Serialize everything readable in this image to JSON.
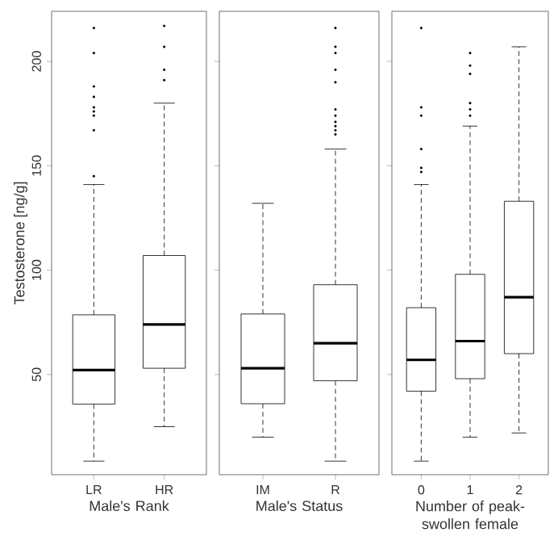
{
  "chart_data": [
    {
      "type": "box",
      "ylabel": "Testosterone [ng/g]",
      "xlabel": "Male's Rank",
      "categories": [
        "LR",
        "HR"
      ],
      "ylim": [
        2,
        224
      ],
      "yticks": [
        50,
        100,
        150,
        200
      ],
      "boxes": [
        {
          "low": 8.5,
          "q1": 35.8,
          "median": 52.1,
          "q3": 78.6,
          "high": 141,
          "outliers": [
            145,
            167,
            174,
            176,
            178,
            183,
            188,
            204,
            216
          ]
        },
        {
          "low": 25,
          "q1": 53,
          "median": 74,
          "q3": 107,
          "high": 180,
          "outliers": [
            191,
            196,
            207,
            217
          ]
        }
      ]
    },
    {
      "type": "box",
      "xlabel": "Male's Status",
      "categories": [
        "IM",
        "R"
      ],
      "ylim": [
        2,
        224
      ],
      "yticks": [
        50,
        100,
        150,
        200
      ],
      "tick_labels": "x",
      "boxes": [
        {
          "low": 20,
          "q1": 36,
          "median": 53,
          "q3": 79,
          "high": 132
        },
        {
          "low": 8.5,
          "q1": 47,
          "median": 65,
          "q3": 93,
          "high": 158,
          "outliers": [
            165,
            167,
            169,
            171,
            174,
            177,
            190,
            196,
            204,
            207,
            216
          ]
        }
      ]
    },
    {
      "type": "box",
      "xlabel": "Number of peak-swollen female",
      "categories": [
        "0",
        "1",
        "2"
      ],
      "ylim": [
        2,
        224
      ],
      "yticks": [
        50,
        100,
        150,
        200
      ],
      "tick_labels": "x",
      "boxes": [
        {
          "low": 8.5,
          "q1": 42,
          "median": 57,
          "q3": 82,
          "high": 141,
          "outliers": [
            147,
            149,
            158,
            174,
            178,
            216
          ]
        },
        {
          "low": 20,
          "q1": 48,
          "median": 66,
          "q3": 98,
          "high": 169,
          "outliers": [
            174,
            177,
            180,
            194,
            198,
            204
          ]
        },
        {
          "low": 22,
          "q1": 60,
          "median": 87,
          "q3": 133,
          "high": 207
        }
      ]
    }
  ]
}
